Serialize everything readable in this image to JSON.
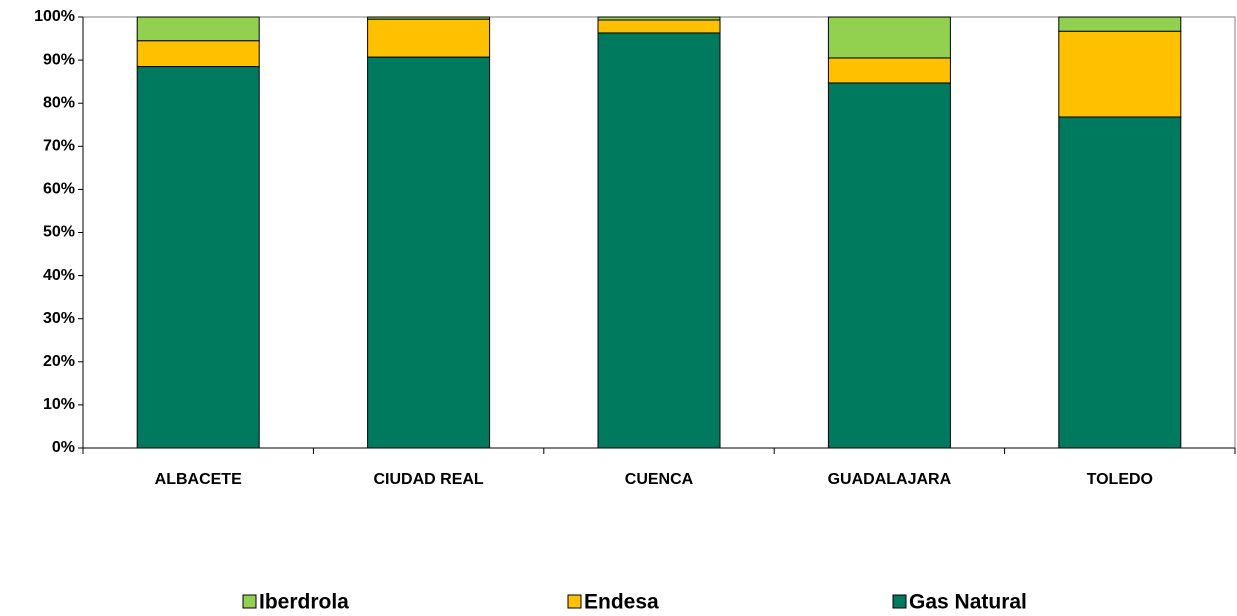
{
  "chart_data": {
    "type": "stacked_bar_100",
    "categories": [
      "ALBACETE",
      "CIUDAD REAL",
      "CUENCA",
      "GUADALAJARA",
      "TOLEDO"
    ],
    "series": [
      {
        "name": "Iberdrola",
        "color": "#92d050",
        "values": [
          5.5,
          0.5,
          0.7,
          9.5,
          3.3
        ]
      },
      {
        "name": "Endesa",
        "color": "#ffc000",
        "values": [
          6,
          8.8,
          3,
          5.8,
          19.9
        ]
      },
      {
        "name": "Gas Natural",
        "color": "#007a5e",
        "values": [
          88.5,
          90.7,
          96.3,
          84.7,
          76.8
        ]
      }
    ],
    "ylim": [
      0,
      100
    ],
    "yticks": [
      {
        "value": 0,
        "label": "0%"
      },
      {
        "value": 10,
        "label": "10%"
      },
      {
        "value": 20,
        "label": "20%"
      },
      {
        "value": 30,
        "label": "30%"
      },
      {
        "value": 40,
        "label": "40%"
      },
      {
        "value": 50,
        "label": "50%"
      },
      {
        "value": 60,
        "label": "60%"
      },
      {
        "value": 70,
        "label": "70%"
      },
      {
        "value": 80,
        "label": "80%"
      },
      {
        "value": 90,
        "label": "90%"
      },
      {
        "value": 100,
        "label": "100%"
      }
    ],
    "legend": "bottom"
  }
}
